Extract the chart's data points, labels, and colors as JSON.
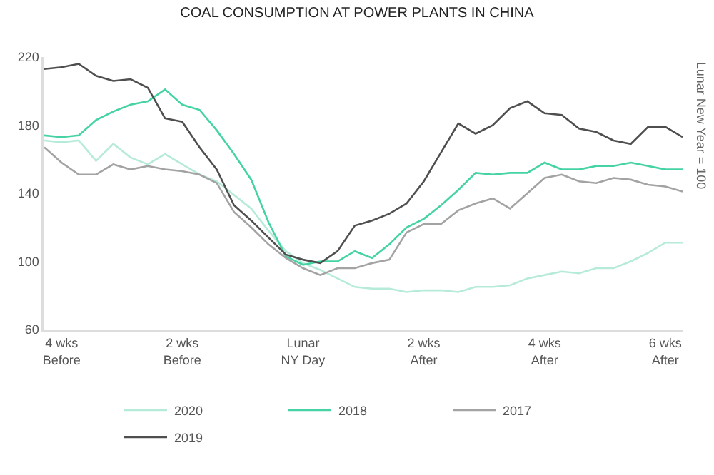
{
  "chart_data": {
    "type": "line",
    "title": "COAL CONSUMPTION AT POWER PLANTS IN CHINA",
    "ylabel": "Lunar New Year = 100",
    "categories": [
      null,
      "4 wks\nBefore",
      null,
      null,
      null,
      null,
      null,
      null,
      "2 wks\nBefore",
      null,
      null,
      null,
      null,
      null,
      null,
      "Lunar\nNY Day",
      null,
      null,
      null,
      null,
      null,
      null,
      "2 wks\nAfter",
      null,
      null,
      null,
      null,
      null,
      null,
      "4 wks\nAfter",
      null,
      null,
      null,
      null,
      null,
      null,
      "6 wks\nAfter",
      null
    ],
    "ylim": [
      60,
      220
    ],
    "yticks": [
      60,
      100,
      140,
      180,
      220
    ],
    "legend": "bottom",
    "marker": "none",
    "line_style": "solid",
    "series": [
      {
        "name": "2020",
        "color": "#b7ebd9",
        "values": [
          171,
          170,
          171,
          159,
          169,
          161,
          157,
          163,
          157,
          151,
          147,
          139,
          131,
          118,
          106,
          99,
          95,
          90,
          85,
          84,
          84,
          82,
          83,
          83,
          82,
          85,
          85,
          86,
          90,
          92,
          94,
          93,
          96,
          96,
          100,
          105,
          111,
          111
        ]
      },
      {
        "name": "2018",
        "color": "#45d3a5",
        "values": [
          174,
          173,
          174,
          183,
          188,
          192,
          194,
          201,
          192,
          189,
          177,
          163,
          148,
          123,
          103,
          98,
          100,
          100,
          106,
          102,
          110,
          120,
          125,
          133,
          142,
          152,
          151,
          152,
          152,
          158,
          154,
          154,
          156,
          156,
          158,
          156,
          154,
          154
        ]
      },
      {
        "name": "2017",
        "color": "#a3a3a3",
        "values": [
          167,
          158,
          151,
          151,
          157,
          154,
          156,
          154,
          153,
          151,
          146,
          129,
          120,
          110,
          102,
          96,
          92,
          96,
          96,
          99,
          101,
          117,
          122,
          122,
          130,
          134,
          137,
          131,
          140,
          149,
          151,
          147,
          146,
          149,
          148,
          145,
          144,
          141
        ]
      },
      {
        "name": "2019",
        "color": "#4f4f4f",
        "values": [
          213,
          214,
          216,
          209,
          206,
          207,
          202,
          184,
          182,
          167,
          154,
          133,
          124,
          114,
          104,
          101,
          99,
          106,
          121,
          124,
          128,
          134,
          147,
          164,
          181,
          175,
          180,
          190,
          194,
          187,
          186,
          178,
          176,
          171,
          169,
          179,
          179,
          173
        ]
      }
    ]
  }
}
